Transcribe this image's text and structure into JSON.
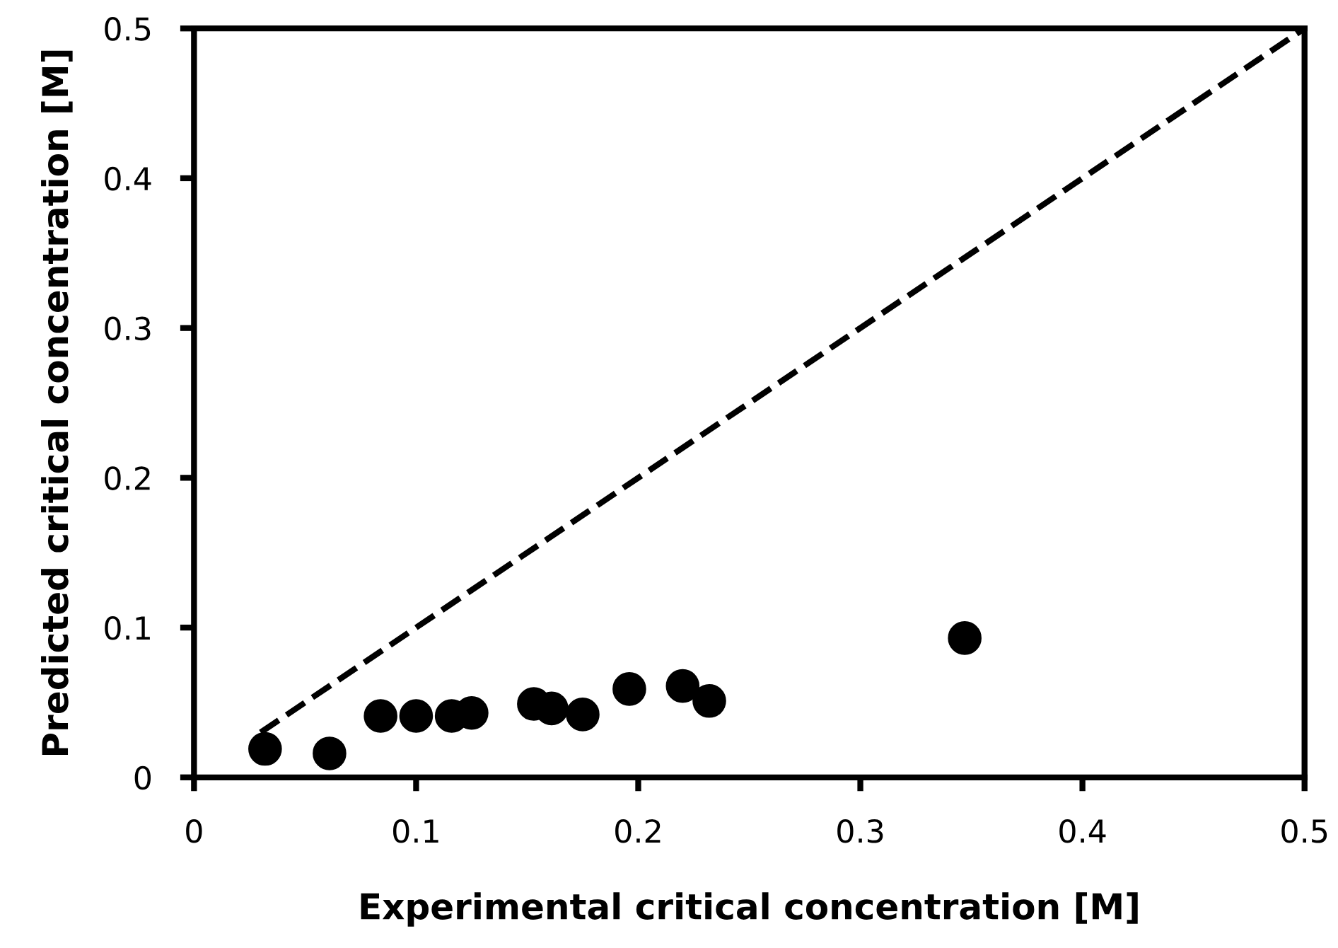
{
  "chart_data": {
    "type": "scatter",
    "xlabel": "Experimental critical concentration [M]",
    "ylabel": "Predicted critical concentration [M]",
    "xlim": [
      0,
      0.5
    ],
    "ylim": [
      0,
      0.5
    ],
    "xticks": [
      0,
      0.1,
      0.2,
      0.3,
      0.4,
      0.5
    ],
    "yticks": [
      0,
      0.1,
      0.2,
      0.3,
      0.4,
      0.5
    ],
    "grid": false,
    "legend": false,
    "series": [
      {
        "color": "#000000",
        "marker": "circle",
        "x": [
          0.032,
          0.061,
          0.084,
          0.1,
          0.116,
          0.125,
          0.153,
          0.161,
          0.175,
          0.196,
          0.22,
          0.232,
          0.347
        ],
        "values": [
          0.019,
          0.016,
          0.041,
          0.041,
          0.041,
          0.043,
          0.049,
          0.046,
          0.042,
          0.059,
          0.061,
          0.051,
          0.093
        ]
      },
      {
        "type": "line",
        "color": "#000000",
        "marker": "none",
        "line_style": "dashed",
        "x": [
          0.03,
          0.5
        ],
        "values": [
          0.03,
          0.5
        ]
      }
    ]
  }
}
